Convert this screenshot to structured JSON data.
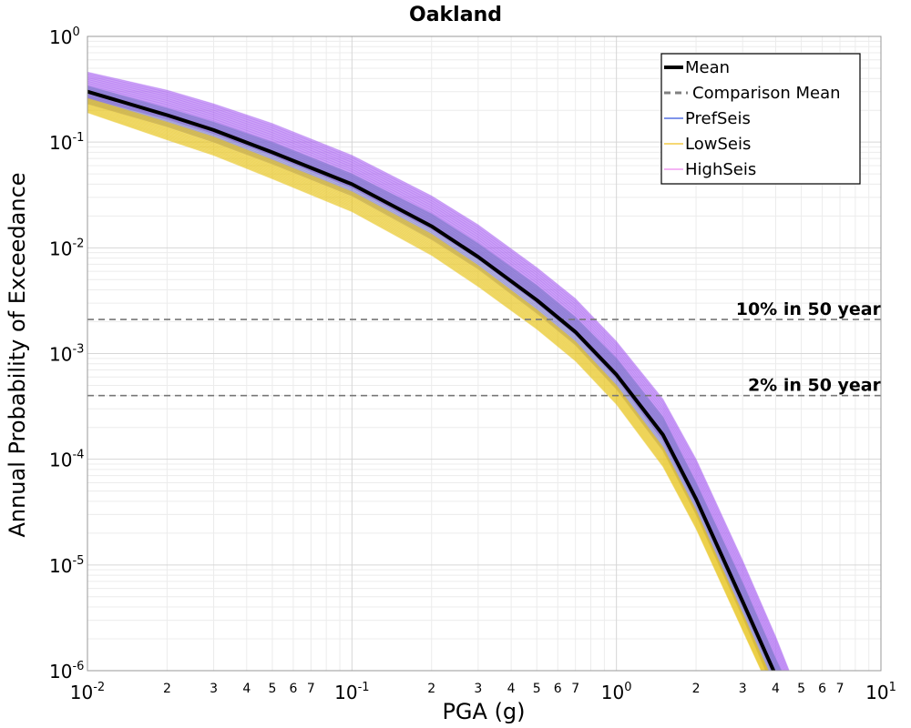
{
  "chart_data": {
    "type": "line",
    "title": "Oakland",
    "xlabel": "PGA (g)",
    "ylabel": "Annual Probability of Exceedance",
    "x_scale": "log",
    "y_scale": "log",
    "xlim": [
      0.01,
      10
    ],
    "ylim": [
      1e-06,
      1
    ],
    "grid": true,
    "legend_position": "top-right",
    "x_major_ticks": [
      {
        "value": 0.01,
        "base": "10",
        "exp": "-2"
      },
      {
        "value": 0.1,
        "base": "10",
        "exp": "-1"
      },
      {
        "value": 1,
        "base": "10",
        "exp": "0"
      },
      {
        "value": 10,
        "base": "10",
        "exp": "1"
      }
    ],
    "x_minor_tick_labels": [
      "2",
      "3",
      "4",
      "5",
      "6",
      "7"
    ],
    "y_major_ticks": [
      {
        "value": 1,
        "base": "10",
        "exp": "0"
      },
      {
        "value": 0.1,
        "base": "10",
        "exp": "-1"
      },
      {
        "value": 0.01,
        "base": "10",
        "exp": "-2"
      },
      {
        "value": 0.001,
        "base": "10",
        "exp": "-3"
      },
      {
        "value": 0.0001,
        "base": "10",
        "exp": "-4"
      },
      {
        "value": 1e-05,
        "base": "10",
        "exp": "-5"
      },
      {
        "value": 1e-06,
        "base": "10",
        "exp": "-6"
      }
    ],
    "legend": [
      {
        "label": "Mean",
        "color": "#000000",
        "style": "solid-thick"
      },
      {
        "label": "Comparison Mean",
        "color": "#808080",
        "style": "dashed"
      },
      {
        "label": "PrefSeis",
        "color": "#3355dd",
        "style": "solid-thin"
      },
      {
        "label": "LowSeis",
        "color": "#f0c020",
        "style": "solid-thin"
      },
      {
        "label": "HighSeis",
        "color": "#ee88ee",
        "style": "solid-thin"
      }
    ],
    "reference_lines": [
      {
        "label": "10% in 50 year",
        "y": 0.0021
      },
      {
        "label": "2% in 50 year",
        "y": 0.0004
      }
    ],
    "mean_curve": {
      "name": "Mean",
      "x": [
        0.01,
        0.02,
        0.03,
        0.05,
        0.1,
        0.2,
        0.3,
        0.5,
        0.7,
        1.0,
        1.5,
        2.0,
        3.0,
        4.0
      ],
      "y": [
        0.3,
        0.18,
        0.13,
        0.08,
        0.04,
        0.016,
        0.0082,
        0.0032,
        0.0016,
        0.00063,
        0.00017,
        4.2e-05,
        4.5e-06,
        9e-07
      ]
    },
    "bands": [
      {
        "name": "HighSeis",
        "color": "#a45af0",
        "x": [
          0.01,
          0.02,
          0.03,
          0.05,
          0.1,
          0.2,
          0.3,
          0.5,
          0.7,
          1.0,
          1.5,
          2.0,
          3.0,
          4.0,
          4.5
        ],
        "upper": [
          0.46,
          0.31,
          0.23,
          0.15,
          0.075,
          0.031,
          0.0165,
          0.0065,
          0.0033,
          0.0013,
          0.00037,
          0.0001,
          1.1e-05,
          2.1e-06,
          1e-06
        ],
        "lower": [
          0.26,
          0.165,
          0.12,
          0.075,
          0.037,
          0.015,
          0.0078,
          0.003,
          0.0015,
          0.00058,
          0.00015,
          3.8e-05,
          4e-06,
          8e-07,
          4e-07
        ]
      },
      {
        "name": "PrefSeis",
        "color": "#7a78c8",
        "x": [
          0.01,
          0.02,
          0.03,
          0.05,
          0.1,
          0.2,
          0.3,
          0.5,
          0.7,
          1.0,
          1.5,
          2.0,
          3.0,
          4.0,
          4.5
        ],
        "upper": [
          0.34,
          0.21,
          0.155,
          0.1,
          0.05,
          0.021,
          0.011,
          0.0044,
          0.0022,
          0.0009,
          0.00025,
          6e-05,
          6.8e-06,
          1.3e-06,
          7e-07
        ],
        "lower": [
          0.23,
          0.14,
          0.1,
          0.062,
          0.031,
          0.012,
          0.0063,
          0.0024,
          0.0012,
          0.00046,
          0.00012,
          3e-05,
          3.2e-06,
          6e-07,
          3e-07
        ]
      },
      {
        "name": "LowSeis",
        "color": "#e8c418",
        "x": [
          0.01,
          0.02,
          0.03,
          0.05,
          0.1,
          0.2,
          0.3,
          0.5,
          0.7,
          1.0,
          1.5,
          2.0,
          3.0,
          4.0,
          4.5
        ],
        "upper": [
          0.26,
          0.155,
          0.112,
          0.068,
          0.034,
          0.0135,
          0.0068,
          0.0026,
          0.0013,
          0.0005,
          0.00013,
          3.3e-05,
          3.5e-06,
          7e-07,
          4e-07
        ],
        "lower": [
          0.19,
          0.105,
          0.075,
          0.045,
          0.022,
          0.0085,
          0.0043,
          0.0017,
          0.00085,
          0.00033,
          8.5e-05,
          2.2e-05,
          2.4e-06,
          5e-07,
          3e-07
        ]
      }
    ]
  }
}
